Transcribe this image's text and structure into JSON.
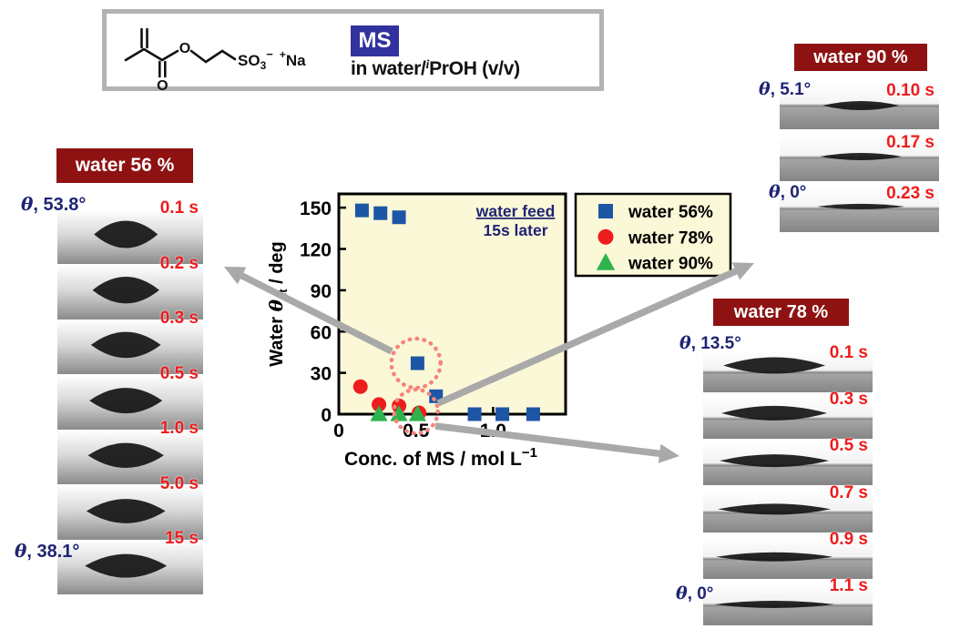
{
  "colors": {
    "maroon": "#8E1212",
    "navy": "#1F2473",
    "time_red": "#EE1C1C",
    "badge_blue": "#32329E",
    "plot_bg": "#FBF8D8",
    "arrow_gray": "#A9A9A9",
    "highlight_pink": "#F5857B",
    "box_border_gray": "#B3B3B3"
  },
  "header": {
    "ms_label": "MS",
    "solvent_prefix": "in water/",
    "solvent_sup_i": "i",
    "solvent_suffix": "PrOH (v/v)",
    "formula": {
      "so": "SO",
      "sub3": "3",
      "sup_minus": "−",
      "sup_plus": "+",
      "na": "Na",
      "o_carbonyl": "O",
      "o_ester": "O"
    }
  },
  "theta_symbol": "θ",
  "chart_data": {
    "type": "scatter",
    "title": "",
    "xlabel": "Conc. of MS / mol L",
    "xlabel_sup": "−1",
    "ylabel_pre": "Water ",
    "ylabel_sym": "θ",
    "ylabel_sub": "st",
    "ylabel_post": " / deg",
    "xlim": [
      0,
      1.47
    ],
    "ylim": [
      0,
      150
    ],
    "grid": false,
    "xticks": [
      "0",
      "0.5",
      "1.0"
    ],
    "xtick_values": [
      0,
      0.5,
      1.0
    ],
    "yticks": [
      "0",
      "30",
      "60",
      "90",
      "120",
      "150"
    ],
    "ytick_values": [
      0,
      30,
      60,
      90,
      120,
      150
    ],
    "annotation_line1": "water feed",
    "annotation_line2": "15s later",
    "legend_position": "outside top-right",
    "series": [
      {
        "name": "water 56%",
        "marker": "square",
        "color": "#1D56A5",
        "points": [
          [
            0.15,
            148
          ],
          [
            0.27,
            146
          ],
          [
            0.39,
            143
          ],
          [
            0.51,
            37
          ],
          [
            0.63,
            13
          ],
          [
            0.88,
            0
          ],
          [
            1.06,
            0
          ],
          [
            1.26,
            0
          ]
        ]
      },
      {
        "name": "water 78%",
        "marker": "circle",
        "color": "#EE1C1C",
        "points": [
          [
            0.14,
            20
          ],
          [
            0.26,
            7
          ],
          [
            0.39,
            6
          ],
          [
            0.52,
            1
          ]
        ]
      },
      {
        "name": "water 90%",
        "marker": "triangle",
        "color": "#2EB34D",
        "points": [
          [
            0.26,
            0
          ],
          [
            0.39,
            0
          ],
          [
            0.51,
            0
          ]
        ]
      }
    ],
    "highlight_circles": [
      {
        "x": 0.5,
        "y": 37
      },
      {
        "x": 0.5,
        "y": 2
      }
    ]
  },
  "panels": [
    {
      "id": "water56",
      "title": "water 56 %",
      "frames": [
        {
          "time": "0.1 s",
          "angle": ", 53.8°"
        },
        {
          "time": "0.2 s"
        },
        {
          "time": "0.3 s"
        },
        {
          "time": "0.5 s"
        },
        {
          "time": "1.0 s"
        },
        {
          "time": "5.0 s"
        },
        {
          "time": "15 s",
          "angle": ", 38.1°"
        }
      ]
    },
    {
      "id": "water78",
      "title": "water 78 %",
      "frames": [
        {
          "time": "0.1 s",
          "angle": ", 13.5°"
        },
        {
          "time": "0.3 s"
        },
        {
          "time": "0.5 s"
        },
        {
          "time": "0.7 s"
        },
        {
          "time": "0.9 s"
        },
        {
          "time": "1.1 s",
          "angle": ", 0°"
        }
      ]
    },
    {
      "id": "water90",
      "title": "water 90 %",
      "frames": [
        {
          "time": "0.10 s",
          "angle": ", 5.1°"
        },
        {
          "time": "0.17 s"
        },
        {
          "time": "0.23 s",
          "angle": ", 0°"
        }
      ]
    }
  ]
}
